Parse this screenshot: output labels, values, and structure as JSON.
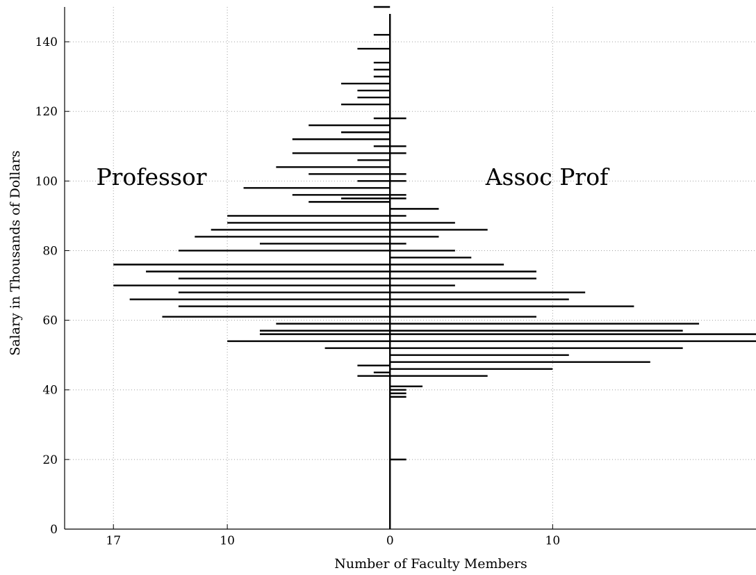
{
  "chart_data": {
    "type": "bar",
    "orientation": "horizontal",
    "layout": "back-to-back",
    "title": "",
    "xlabel": "Number of Faculty Members",
    "ylabel": "Salary in Thousands of Dollars",
    "y_ticks": [
      0,
      20,
      40,
      60,
      80,
      100,
      120,
      140
    ],
    "x_ticks": [
      {
        "value": -17,
        "label": "17"
      },
      {
        "value": -10,
        "label": "10"
      },
      {
        "value": 0,
        "label": "0"
      },
      {
        "value": 10,
        "label": "10"
      }
    ],
    "xlim": [
      -20,
      22.5
    ],
    "ylim": [
      0,
      150
    ],
    "grid": true,
    "group_labels": {
      "left": "Professor",
      "right": "Assoc Prof"
    },
    "salary": [
      20,
      38,
      39,
      40,
      41,
      42,
      44,
      45,
      46,
      47,
      48,
      50,
      52,
      54,
      56,
      57,
      58,
      59,
      61,
      62,
      64,
      66,
      68,
      70,
      72,
      74,
      76,
      78,
      80,
      82,
      84,
      86,
      88,
      90,
      92,
      94,
      95,
      96,
      98,
      100,
      101,
      102,
      104,
      106,
      108,
      110,
      112,
      114,
      116,
      118,
      122,
      124,
      126,
      128,
      130,
      132,
      134,
      136,
      138,
      142,
      150
    ],
    "series": [
      {
        "name": "Professor",
        "values": [
          0,
          0,
          0,
          0,
          0,
          0,
          2,
          1,
          0,
          2,
          0,
          0,
          4,
          10,
          8,
          8,
          0,
          7,
          14,
          0,
          13,
          16,
          13,
          17,
          13,
          15,
          17,
          0,
          13,
          8,
          12,
          11,
          10,
          10,
          0,
          5,
          3,
          6,
          9,
          2,
          0,
          5,
          7,
          2,
          6,
          1,
          6,
          3,
          5,
          1,
          3,
          2,
          2,
          3,
          1,
          1,
          1,
          0,
          2,
          1,
          1
        ]
      },
      {
        "name": "Assoc Prof",
        "values": [
          1,
          1,
          1,
          1,
          2,
          0,
          6,
          0,
          10,
          0,
          16,
          11,
          18,
          23,
          23,
          18,
          0,
          19,
          9,
          0,
          15,
          11,
          12,
          4,
          9,
          9,
          7,
          5,
          4,
          1,
          3,
          6,
          4,
          1,
          3,
          0,
          1,
          1,
          0,
          1,
          0,
          1,
          0,
          0,
          1,
          1,
          0,
          0,
          0,
          1,
          0,
          0,
          0,
          0,
          0,
          0,
          0,
          0,
          0,
          0,
          0
        ]
      }
    ]
  }
}
